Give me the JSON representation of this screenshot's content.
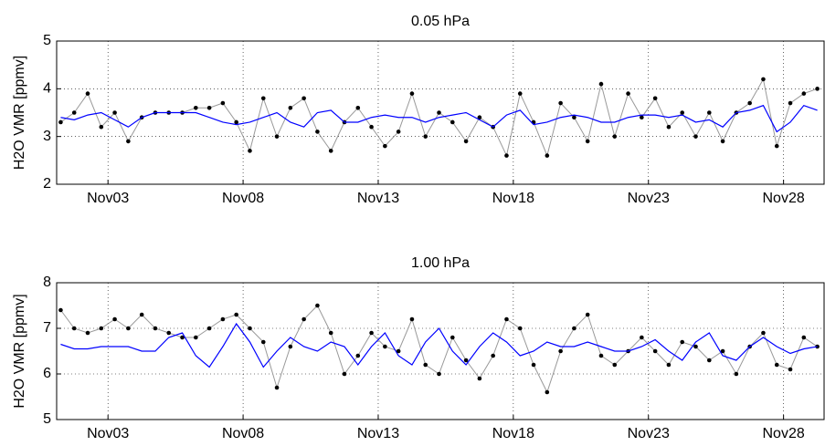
{
  "chart_data": [
    {
      "type": "line",
      "title": "0.05 hPa",
      "ylabel": "H2O VMR [ppmv]",
      "x": [
        1.25,
        1.75,
        2.25,
        2.75,
        3.25,
        3.75,
        4.25,
        4.75,
        5.25,
        5.75,
        6.25,
        6.75,
        7.25,
        7.75,
        8.25,
        8.75,
        9.25,
        9.75,
        10.25,
        10.75,
        11.25,
        11.75,
        12.25,
        12.75,
        13.25,
        13.75,
        14.25,
        14.75,
        15.25,
        15.75,
        16.25,
        16.75,
        17.25,
        17.75,
        18.25,
        18.75,
        19.25,
        19.75,
        20.25,
        20.75,
        21.25,
        21.75,
        22.25,
        22.75,
        23.25,
        23.75,
        24.25,
        24.75,
        25.25,
        25.75,
        26.25,
        26.75,
        27.25,
        27.75,
        28.25,
        28.75,
        29.25
      ],
      "series": [
        {
          "color": "#999999",
          "marker_color": "#000000",
          "markers": true,
          "values": [
            3.3,
            3.5,
            3.9,
            3.2,
            3.5,
            2.9,
            3.4,
            3.5,
            3.5,
            3.5,
            3.6,
            3.6,
            3.7,
            3.3,
            2.7,
            3.8,
            3.0,
            3.6,
            3.8,
            3.1,
            2.7,
            3.3,
            3.6,
            3.2,
            2.8,
            3.1,
            3.9,
            3.0,
            3.5,
            3.3,
            2.9,
            3.4,
            3.2,
            2.6,
            3.9,
            3.3,
            2.6,
            3.7,
            3.4,
            2.9,
            4.1,
            3.0,
            3.9,
            3.4,
            3.8,
            3.2,
            3.5,
            3.0,
            3.5,
            2.9,
            3.5,
            3.7,
            4.2,
            2.8,
            3.7,
            3.9,
            4.0
          ]
        },
        {
          "color": "#0000ff",
          "markers": false,
          "values": [
            3.4,
            3.35,
            3.45,
            3.5,
            3.35,
            3.2,
            3.4,
            3.5,
            3.5,
            3.5,
            3.5,
            3.4,
            3.3,
            3.25,
            3.3,
            3.4,
            3.5,
            3.3,
            3.2,
            3.5,
            3.55,
            3.3,
            3.3,
            3.4,
            3.45,
            3.4,
            3.4,
            3.3,
            3.4,
            3.45,
            3.5,
            3.35,
            3.2,
            3.45,
            3.55,
            3.25,
            3.3,
            3.4,
            3.45,
            3.4,
            3.3,
            3.3,
            3.4,
            3.45,
            3.45,
            3.4,
            3.45,
            3.3,
            3.35,
            3.2,
            3.5,
            3.55,
            3.65,
            3.1,
            3.3,
            3.65,
            3.55
          ]
        }
      ],
      "xlim": [
        1.1,
        29.5
      ],
      "xticks": [
        {
          "value": 3,
          "label": "Nov03"
        },
        {
          "value": 8,
          "label": "Nov08"
        },
        {
          "value": 13,
          "label": "Nov13"
        },
        {
          "value": 18,
          "label": "Nov18"
        },
        {
          "value": 23,
          "label": "Nov23"
        },
        {
          "value": 28,
          "label": "Nov28"
        }
      ],
      "ylim": [
        2,
        5
      ],
      "yticks": [
        2,
        3,
        4,
        5
      ],
      "grid": true
    },
    {
      "type": "line",
      "title": "1.00 hPa",
      "ylabel": "H2O VMR [ppmv]",
      "x": [
        1.25,
        1.75,
        2.25,
        2.75,
        3.25,
        3.75,
        4.25,
        4.75,
        5.25,
        5.75,
        6.25,
        6.75,
        7.25,
        7.75,
        8.25,
        8.75,
        9.25,
        9.75,
        10.25,
        10.75,
        11.25,
        11.75,
        12.25,
        12.75,
        13.25,
        13.75,
        14.25,
        14.75,
        15.25,
        15.75,
        16.25,
        16.75,
        17.25,
        17.75,
        18.25,
        18.75,
        19.25,
        19.75,
        20.25,
        20.75,
        21.25,
        21.75,
        22.25,
        22.75,
        23.25,
        23.75,
        24.25,
        24.75,
        25.25,
        25.75,
        26.25,
        26.75,
        27.25,
        27.75,
        28.25,
        28.75,
        29.25
      ],
      "series": [
        {
          "color": "#999999",
          "marker_color": "#000000",
          "markers": true,
          "values": [
            7.4,
            7.0,
            6.9,
            7.0,
            7.2,
            7.0,
            7.3,
            7.0,
            6.9,
            6.8,
            6.8,
            7.0,
            7.2,
            7.3,
            7.0,
            6.7,
            5.7,
            6.6,
            7.2,
            7.5,
            6.9,
            6.0,
            6.4,
            6.9,
            6.6,
            6.5,
            7.2,
            6.2,
            6.0,
            6.8,
            6.3,
            5.9,
            6.4,
            7.2,
            7.0,
            6.2,
            5.6,
            6.5,
            7.0,
            7.3,
            6.4,
            6.2,
            6.5,
            6.8,
            6.5,
            6.2,
            6.7,
            6.6,
            6.3,
            6.5,
            6.0,
            6.6,
            6.9,
            6.2,
            6.1,
            6.8,
            6.6
          ]
        },
        {
          "color": "#0000ff",
          "markers": false,
          "values": [
            6.65,
            6.55,
            6.55,
            6.6,
            6.6,
            6.6,
            6.5,
            6.5,
            6.8,
            6.9,
            6.4,
            6.15,
            6.6,
            7.1,
            6.7,
            6.15,
            6.5,
            6.8,
            6.6,
            6.5,
            6.7,
            6.6,
            6.2,
            6.6,
            6.9,
            6.4,
            6.2,
            6.7,
            7.0,
            6.5,
            6.2,
            6.6,
            6.9,
            6.7,
            6.4,
            6.5,
            6.7,
            6.6,
            6.6,
            6.7,
            6.6,
            6.5,
            6.5,
            6.6,
            6.75,
            6.5,
            6.3,
            6.7,
            6.9,
            6.4,
            6.3,
            6.6,
            6.8,
            6.6,
            6.45,
            6.55,
            6.6
          ]
        }
      ],
      "xlim": [
        1.1,
        29.5
      ],
      "xticks": [
        {
          "value": 3,
          "label": "Nov03"
        },
        {
          "value": 8,
          "label": "Nov08"
        },
        {
          "value": 13,
          "label": "Nov13"
        },
        {
          "value": 18,
          "label": "Nov18"
        },
        {
          "value": 23,
          "label": "Nov23"
        },
        {
          "value": 28,
          "label": "Nov28"
        }
      ],
      "ylim": [
        5,
        8
      ],
      "yticks": [
        5,
        6,
        7,
        8
      ],
      "grid": true
    }
  ]
}
